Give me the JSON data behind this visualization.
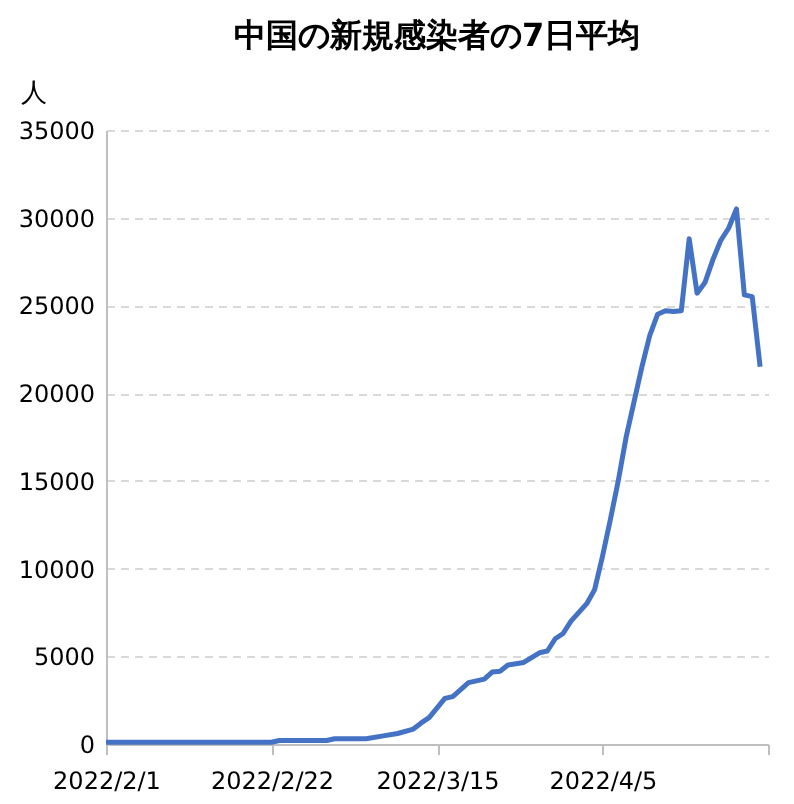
{
  "chart_data": {
    "type": "line",
    "title": "中国の新規感染者の7日平均",
    "ylabel": "人",
    "x": [
      "2022-02-01",
      "2022-02-08",
      "2022-02-15",
      "2022-02-22",
      "2022-02-23",
      "2022-03-01",
      "2022-03-02",
      "2022-03-06",
      "2022-03-08",
      "2022-03-10",
      "2022-03-12",
      "2022-03-13",
      "2022-03-14",
      "2022-03-16",
      "2022-03-17",
      "2022-03-19",
      "2022-03-20",
      "2022-03-21",
      "2022-03-22",
      "2022-03-23",
      "2022-03-24",
      "2022-03-26",
      "2022-03-28",
      "2022-03-29",
      "2022-03-30",
      "2022-03-31",
      "2022-04-01",
      "2022-04-02",
      "2022-04-03",
      "2022-04-04",
      "2022-04-05",
      "2022-04-06",
      "2022-04-07",
      "2022-04-08",
      "2022-04-09",
      "2022-04-10",
      "2022-04-11",
      "2022-04-12",
      "2022-04-13",
      "2022-04-14",
      "2022-04-15",
      "2022-04-16",
      "2022-04-17",
      "2022-04-18",
      "2022-04-19",
      "2022-04-20",
      "2022-04-21",
      "2022-04-22",
      "2022-04-23",
      "2022-04-24",
      "2022-04-25"
    ],
    "series": [
      {
        "color": "#4472c4",
        "values": [
          100,
          100,
          100,
          100,
          200,
          200,
          300,
          300,
          450,
          600,
          850,
          1200,
          1500,
          2600,
          2700,
          3500,
          3600,
          3700,
          4100,
          4150,
          4500,
          4650,
          5200,
          5300,
          6000,
          6300,
          7000,
          7500,
          8000,
          8800,
          10700,
          12800,
          15000,
          17500,
          19500,
          21500,
          23300,
          24500,
          24700,
          24650,
          24700,
          28800,
          25700,
          26300,
          27600,
          28700,
          29400,
          30500,
          25600,
          25500,
          21500
        ]
      }
    ],
    "xlim": [
      "2022-02-01",
      "2022-04-26"
    ],
    "xticks": [
      {
        "value": "2022-02-01",
        "label": "2022/2/1"
      },
      {
        "value": "2022-02-22",
        "label": "2022/2/22"
      },
      {
        "value": "2022-03-15",
        "label": "2022/3/15"
      },
      {
        "value": "2022-04-05",
        "label": "2022/4/5"
      },
      {
        "value": "2022-04-26",
        "label": null
      }
    ],
    "ylim": [
      0,
      35000
    ],
    "yticks": [
      0,
      5000,
      10000,
      15000,
      20000,
      25000,
      30000,
      35000
    ],
    "grid": "y",
    "line_style": "solid",
    "marker": "none"
  }
}
